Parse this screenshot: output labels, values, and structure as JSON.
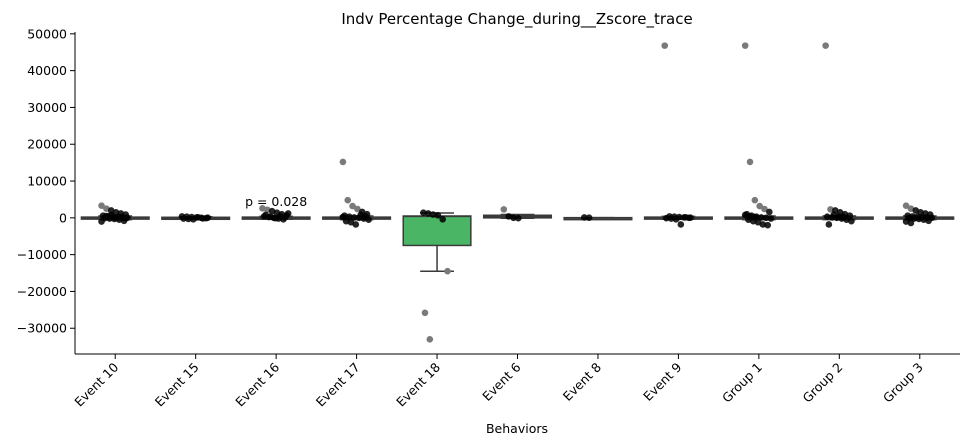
{
  "chart_data": {
    "type": "box",
    "title": "Indv Percentage Change_during__Zscore_trace",
    "xlabel": "Behaviors",
    "ylabel": "",
    "ylim": [
      -37000,
      50500
    ],
    "yticks": [
      -30000,
      -20000,
      -10000,
      0,
      10000,
      20000,
      30000,
      40000,
      50000
    ],
    "ytick_labels": [
      "−30000",
      "−20000",
      "−10000",
      "0",
      "10000",
      "20000",
      "30000",
      "40000",
      "50000"
    ],
    "categories": [
      "Event 10",
      "Event 15",
      "Event 16",
      "Event 17",
      "Event 18",
      "Event 6",
      "Event 8",
      "Event 9",
      "Group 1",
      "Group 2",
      "Group 3"
    ],
    "colors": {
      "box_default": "#5b5b5b",
      "box_highlight": "#4ab564",
      "points": "#000000",
      "edge": "#3a3a3a"
    },
    "boxes": [
      {
        "category": "Event 10",
        "q1": -200,
        "median": 0,
        "q3": 200,
        "whisker_low": -500,
        "whisker_high": 500,
        "highlight": false
      },
      {
        "category": "Event 15",
        "q1": -150,
        "median": 0,
        "q3": 150,
        "whisker_low": -300,
        "whisker_high": 300,
        "highlight": false
      },
      {
        "category": "Event 16",
        "q1": -200,
        "median": 0,
        "q3": 200,
        "whisker_low": -400,
        "whisker_high": 400,
        "highlight": false
      },
      {
        "category": "Event 17",
        "q1": -200,
        "median": 0,
        "q3": 200,
        "whisker_low": -500,
        "whisker_high": 500,
        "highlight": false
      },
      {
        "category": "Event 18",
        "q1": -7500,
        "median": 400,
        "q3": 500,
        "whisker_low": -14500,
        "whisker_high": 1300,
        "highlight": true
      },
      {
        "category": "Event 6",
        "q1": 0,
        "median": 300,
        "q3": 700,
        "whisker_low": -100,
        "whisker_high": 900,
        "highlight": false
      },
      {
        "category": "Event 8",
        "q1": -50,
        "median": 0,
        "q3": 50,
        "whisker_low": -50,
        "whisker_high": 50,
        "highlight": false
      },
      {
        "category": "Event 9",
        "q1": -200,
        "median": 0,
        "q3": 200,
        "whisker_low": -400,
        "whisker_high": 400,
        "highlight": false
      },
      {
        "category": "Group 1",
        "q1": -200,
        "median": 0,
        "q3": 200,
        "whisker_low": -500,
        "whisker_high": 500,
        "highlight": false
      },
      {
        "category": "Group 2",
        "q1": -200,
        "median": 0,
        "q3": 200,
        "whisker_low": -500,
        "whisker_high": 500,
        "highlight": false
      },
      {
        "category": "Group 3",
        "q1": -200,
        "median": 0,
        "q3": 200,
        "whisker_low": -500,
        "whisker_high": 500,
        "highlight": false
      }
    ],
    "points": [
      {
        "category": "Event 10",
        "values": [
          3300,
          2500,
          2000,
          1500,
          1200,
          900,
          600,
          400,
          300,
          200,
          100,
          0,
          -100,
          -200,
          -300,
          -500,
          -800,
          -1000,
          500,
          800,
          0,
          200,
          -100
        ]
      },
      {
        "category": "Event 15",
        "values": [
          400,
          300,
          200,
          100,
          0,
          -100,
          -200,
          -300,
          -400,
          150,
          -150,
          50
        ]
      },
      {
        "category": "Event 16",
        "values": [
          2600,
          2200,
          1800,
          1400,
          1000,
          700,
          400,
          200,
          0,
          -200,
          -400,
          1200,
          800,
          300,
          -100,
          500,
          100
        ]
      },
      {
        "category": "Event 17",
        "values": [
          15200,
          4800,
          3200,
          2400,
          1600,
          1000,
          600,
          300,
          100,
          0,
          -200,
          -500,
          -900,
          -1200,
          -1800,
          800,
          400,
          200
        ]
      },
      {
        "category": "Event 18",
        "values": [
          1400,
          1200,
          900,
          700,
          -400,
          -14500,
          -25800,
          -33000
        ]
      },
      {
        "category": "Event 6",
        "values": [
          2300,
          400,
          0,
          -100
        ]
      },
      {
        "category": "Event 8",
        "values": [
          100,
          50
        ]
      },
      {
        "category": "Event 9",
        "values": [
          46800,
          400,
          300,
          200,
          100,
          0,
          -100,
          -200,
          -400,
          -1800,
          150,
          50
        ]
      },
      {
        "category": "Group 1",
        "values": [
          46800,
          15200,
          4800,
          3200,
          2400,
          1600,
          1000,
          600,
          300,
          100,
          0,
          -200,
          -500,
          -900,
          -1200,
          -1800,
          -2000,
          800,
          400,
          200
        ]
      },
      {
        "category": "Group 2",
        "values": [
          46800,
          2300,
          2000,
          1500,
          1000,
          600,
          300,
          100,
          0,
          -200,
          -500,
          -900,
          -1800,
          800,
          400,
          200
        ]
      },
      {
        "category": "Group 3",
        "values": [
          3300,
          2500,
          2000,
          1500,
          1200,
          900,
          600,
          400,
          300,
          200,
          100,
          0,
          -100,
          -200,
          -300,
          -500,
          -800,
          -1000,
          -1400
        ]
      }
    ],
    "annotations": [
      {
        "category": "Event 16",
        "text": "p = 0.028",
        "y": 3200
      }
    ],
    "grid": false,
    "spines": [
      "left",
      "bottom"
    ]
  }
}
